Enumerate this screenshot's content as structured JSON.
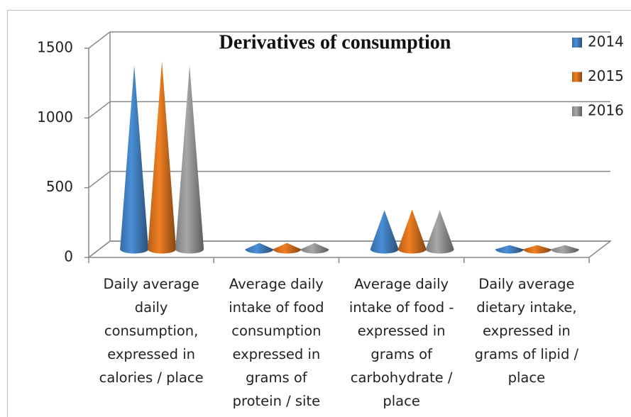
{
  "chart_data": {
    "type": "cone",
    "title": "Derivatives of consumption",
    "categories": [
      "Daily average daily consumption, expressed in calories / place",
      "Average daily intake of food consumption expressed in grams of protein / site",
      "Average daily intake of food - expressed in grams of carbohydrate / place",
      "Daily average dietary intake, expressed in grams of lipid / place"
    ],
    "series": [
      {
        "name": "2014",
        "color": "#4a8fd8",
        "values": [
          1320,
          45,
          280,
          30
        ]
      },
      {
        "name": "2015",
        "color": "#f07f22",
        "values": [
          1350,
          45,
          285,
          30
        ]
      },
      {
        "name": "2016",
        "color": "#a8a8a8",
        "values": [
          1320,
          45,
          280,
          30
        ]
      }
    ],
    "ylim": [
      0,
      1500
    ],
    "yticks": [
      0,
      500,
      1000,
      1500
    ],
    "grid": true,
    "legend": "right"
  }
}
